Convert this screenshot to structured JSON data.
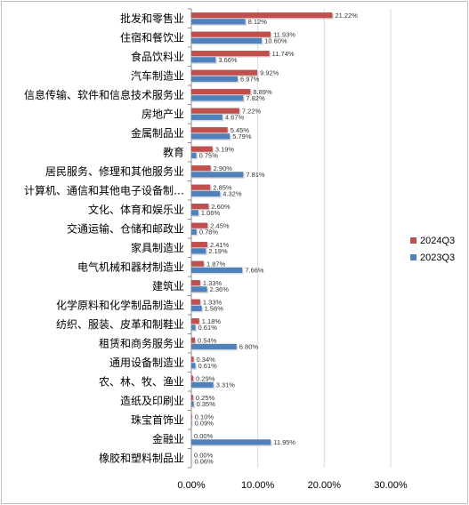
{
  "chart_data": {
    "type": "bar",
    "orientation": "horizontal",
    "categories": [
      "批发和零售业",
      "住宿和餐饮业",
      "食品饮料业",
      "汽车制造业",
      "信息传输、软件和信息技术服务业",
      "房地产业",
      "金属制品业",
      "教育",
      "居民服务、修理和其他服务业",
      "计算机、通信和其他电子设备制…",
      "文化、体育和娱乐业",
      "交通运输、仓储和邮政业",
      "家具制造业",
      "电气机械和器材制造业",
      "建筑业",
      "化学原料和化学制品制造业",
      "纺织、服装、皮革和制鞋业",
      "租赁和商务服务业",
      "通用设备制造业",
      "农、林、牧、渔业",
      "造纸及印刷业",
      "珠宝首饰业",
      "金融业",
      "橡胶和塑料制品业"
    ],
    "series": [
      {
        "name": "2024Q3",
        "color": "#c0504d",
        "values": [
          21.22,
          11.93,
          11.74,
          9.92,
          8.89,
          7.22,
          5.45,
          3.19,
          2.9,
          2.85,
          2.6,
          2.45,
          2.41,
          1.87,
          1.33,
          1.33,
          1.18,
          0.54,
          0.34,
          0.29,
          0.25,
          0.1,
          0.0,
          0.0
        ],
        "labels": [
          "21.22%",
          "11.93%",
          "11.74%",
          "9.92%",
          "8.89%",
          "7.22%",
          "5.45%",
          "3.19%",
          "2.90%",
          "2.85%",
          "2.60%",
          "2.45%",
          "2.41%",
          "1.87%",
          "1.33%",
          "1.33%",
          "1.18%",
          "0.54%",
          "0.34%",
          "0.29%",
          "0.25%",
          "0.10%",
          "0.00%",
          "0.00%"
        ]
      },
      {
        "name": "2023Q3",
        "color": "#4f81bd",
        "values": [
          8.12,
          10.6,
          3.66,
          6.97,
          7.82,
          4.67,
          5.79,
          0.75,
          7.81,
          4.32,
          1.06,
          0.78,
          2.19,
          7.66,
          2.36,
          1.56,
          0.61,
          6.8,
          0.61,
          3.31,
          0.35,
          0.09,
          11.95,
          0.06
        ],
        "labels": [
          "8.12%",
          "10.60%",
          "3.66%",
          "6.97%",
          "7.82%",
          "4.67%",
          "5.79%",
          "0.75%",
          "7.81%",
          "4.32%",
          "1.06%",
          "0.78%",
          "2.19%",
          "7.66%",
          "2.36%",
          "1.56%",
          "0.61%",
          "6.80%",
          "0.61%",
          "3.31%",
          "0.35%",
          "0.09%",
          "11.95%",
          "0.06%"
        ]
      }
    ],
    "xlim": [
      0,
      30
    ],
    "xticks": [
      0,
      10,
      20,
      30
    ],
    "xtick_labels": [
      "0.00%",
      "10.00%",
      "20.00%",
      "30.00%"
    ],
    "grid": true,
    "legend_placement": "right",
    "title": "",
    "xlabel": "",
    "ylabel": ""
  }
}
